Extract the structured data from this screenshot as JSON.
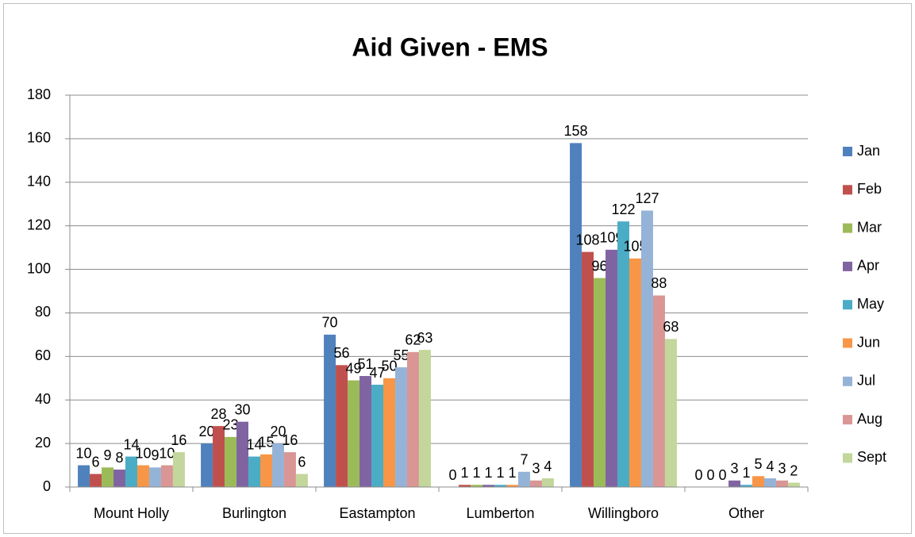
{
  "chart_data": {
    "type": "bar",
    "title": "Aid Given - EMS",
    "categories": [
      "Mount Holly",
      "Burlington",
      "Eastampton",
      "Lumberton",
      "Willingboro",
      "Other"
    ],
    "series": [
      {
        "name": "Jan",
        "color": "#4f81bd",
        "values": [
          10,
          20,
          70,
          0,
          158,
          0
        ]
      },
      {
        "name": "Feb",
        "color": "#c0504d",
        "values": [
          6,
          28,
          56,
          1,
          108,
          0
        ]
      },
      {
        "name": "Mar",
        "color": "#9bbb59",
        "values": [
          9,
          23,
          49,
          1,
          96,
          0
        ]
      },
      {
        "name": "Apr",
        "color": "#8064a2",
        "values": [
          8,
          30,
          51,
          1,
          109,
          3
        ]
      },
      {
        "name": "May",
        "color": "#4bacc6",
        "values": [
          14,
          14,
          47,
          1,
          122,
          1
        ]
      },
      {
        "name": "Jun",
        "color": "#f79646",
        "values": [
          10,
          15,
          50,
          1,
          105,
          5
        ]
      },
      {
        "name": "Jul",
        "color": "#95b3d7",
        "values": [
          9,
          20,
          55,
          7,
          127,
          4
        ]
      },
      {
        "name": "Aug",
        "color": "#d99694",
        "values": [
          10,
          16,
          62,
          3,
          88,
          3
        ]
      },
      {
        "name": "Sept",
        "color": "#c3d69b",
        "values": [
          16,
          6,
          63,
          4,
          68,
          2
        ]
      }
    ],
    "ylim": [
      0,
      180
    ],
    "yticks": [
      0,
      20,
      40,
      60,
      80,
      100,
      120,
      140,
      160,
      180
    ],
    "grid": true,
    "legend": "right"
  }
}
